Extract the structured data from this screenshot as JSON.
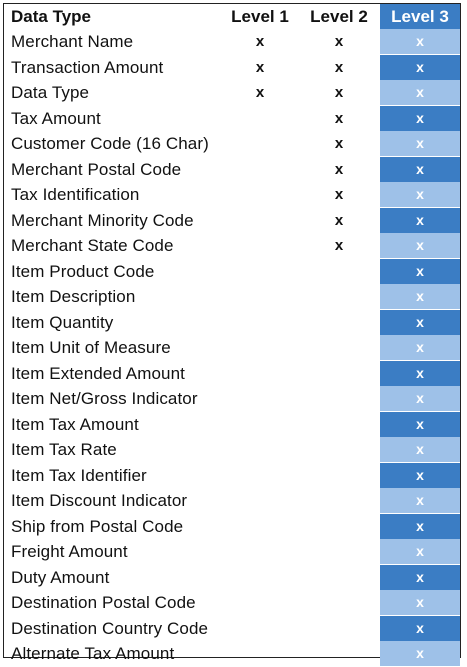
{
  "headers": {
    "data_type": "Data Type",
    "level1": "Level 1",
    "level2": "Level 2",
    "level3": "Level 3"
  },
  "rows": [
    {
      "name": "Merchant Name",
      "l1": "x",
      "l2": "x",
      "l3": "x"
    },
    {
      "name": "Transaction Amount",
      "l1": "x",
      "l2": "x",
      "l3": "x"
    },
    {
      "name": "Data Type",
      "l1": "x",
      "l2": "x",
      "l3": "x"
    },
    {
      "name": "Tax Amount",
      "l1": "",
      "l2": "x",
      "l3": "x"
    },
    {
      "name": "Customer Code (16 Char)",
      "l1": "",
      "l2": "x",
      "l3": "x"
    },
    {
      "name": "Merchant Postal Code",
      "l1": "",
      "l2": "x",
      "l3": "x"
    },
    {
      "name": "Tax Identification",
      "l1": "",
      "l2": "x",
      "l3": "x"
    },
    {
      "name": "Merchant Minority Code",
      "l1": "",
      "l2": "x",
      "l3": "x"
    },
    {
      "name": "Merchant State Code",
      "l1": "",
      "l2": "x",
      "l3": "x"
    },
    {
      "name": "Item Product Code",
      "l1": "",
      "l2": "",
      "l3": "x"
    },
    {
      "name": "Item Description",
      "l1": "",
      "l2": "",
      "l3": "x"
    },
    {
      "name": "Item Quantity",
      "l1": "",
      "l2": "",
      "l3": "x"
    },
    {
      "name": "Item Unit of Measure",
      "l1": "",
      "l2": "",
      "l3": "x"
    },
    {
      "name": "Item Extended Amount",
      "l1": "",
      "l2": "",
      "l3": "x"
    },
    {
      "name": "Item Net/Gross Indicator",
      "l1": "",
      "l2": "",
      "l3": "x"
    },
    {
      "name": "Item Tax Amount",
      "l1": "",
      "l2": "",
      "l3": "x"
    },
    {
      "name": "Item Tax Rate",
      "l1": "",
      "l2": "",
      "l3": "x"
    },
    {
      "name": "Item Tax Identifier",
      "l1": "",
      "l2": "",
      "l3": "x"
    },
    {
      "name": "Item Discount Indicator",
      "l1": "",
      "l2": "",
      "l3": "x"
    },
    {
      "name": "Ship from Postal Code",
      "l1": "",
      "l2": "",
      "l3": "x"
    },
    {
      "name": "Freight Amount",
      "l1": "",
      "l2": "",
      "l3": "x"
    },
    {
      "name": "Duty Amount",
      "l1": "",
      "l2": "",
      "l3": "x"
    },
    {
      "name": "Destination Postal Code",
      "l1": "",
      "l2": "",
      "l3": "x"
    },
    {
      "name": "Destination Country Code",
      "l1": "",
      "l2": "",
      "l3": "x"
    },
    {
      "name": "Alternate Tax Amount",
      "l1": "",
      "l2": "",
      "l3": "x"
    }
  ],
  "colors": {
    "level3_header": "#3b7dc4",
    "level3_light": "#9ec1e8",
    "level3_dark": "#3b7dc4"
  }
}
